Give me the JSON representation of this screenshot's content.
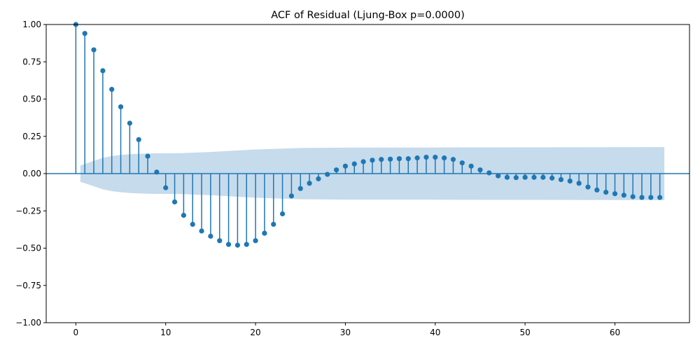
{
  "chart_data": {
    "type": "stem",
    "title": "ACF of Residual (Ljung-Box p=0.0000)",
    "xlabel": "",
    "ylabel": "",
    "xlim": [
      -3.3,
      68.3
    ],
    "ylim": [
      -1.0,
      1.0
    ],
    "x_ticks": [
      "0",
      "10",
      "20",
      "30",
      "40",
      "50",
      "60"
    ],
    "y_ticks": [
      "1.00",
      "0.75",
      "0.50",
      "0.25",
      "0.00",
      "−0.25",
      "−0.50",
      "−0.75",
      "−1.00"
    ],
    "grid": false,
    "lags": [
      0,
      1,
      2,
      3,
      4,
      5,
      6,
      7,
      8,
      9,
      10,
      11,
      12,
      13,
      14,
      15,
      16,
      17,
      18,
      19,
      20,
      21,
      22,
      23,
      24,
      25,
      26,
      27,
      28,
      29,
      30,
      31,
      32,
      33,
      34,
      35,
      36,
      37,
      38,
      39,
      40,
      41,
      42,
      43,
      44,
      45,
      46,
      47,
      48,
      49,
      50,
      51,
      52,
      53,
      54,
      55,
      56,
      57,
      58,
      59,
      60,
      61,
      62,
      63,
      64,
      65
    ],
    "acf": [
      1.0,
      0.94,
      0.83,
      0.69,
      0.565,
      0.448,
      0.338,
      0.228,
      0.117,
      0.01,
      -0.095,
      -0.19,
      -0.28,
      -0.34,
      -0.385,
      -0.42,
      -0.45,
      -0.475,
      -0.48,
      -0.475,
      -0.45,
      -0.4,
      -0.34,
      -0.27,
      -0.15,
      -0.1,
      -0.065,
      -0.035,
      -0.005,
      0.025,
      0.05,
      0.065,
      0.08,
      0.09,
      0.095,
      0.097,
      0.1,
      0.1,
      0.105,
      0.11,
      0.11,
      0.105,
      0.095,
      0.072,
      0.05,
      0.025,
      0.005,
      -0.015,
      -0.025,
      -0.027,
      -0.025,
      -0.025,
      -0.025,
      -0.03,
      -0.04,
      -0.05,
      -0.065,
      -0.09,
      -0.11,
      -0.125,
      -0.135,
      -0.145,
      -0.155,
      -0.16,
      -0.16,
      -0.16
    ],
    "confidence_band": {
      "lags": [
        0.5,
        1,
        2,
        3,
        4,
        5,
        6,
        7,
        8,
        9,
        10,
        12,
        15,
        20,
        25,
        30,
        40,
        50,
        60,
        65.5
      ],
      "upper": [
        0.055,
        0.065,
        0.085,
        0.105,
        0.118,
        0.125,
        0.13,
        0.133,
        0.135,
        0.136,
        0.136,
        0.138,
        0.145,
        0.162,
        0.172,
        0.174,
        0.175,
        0.176,
        0.177,
        0.178
      ]
    },
    "colors": {
      "stem": "#1f77b4",
      "band": "#c6dbec",
      "zero_line": "#1f77b4"
    }
  }
}
